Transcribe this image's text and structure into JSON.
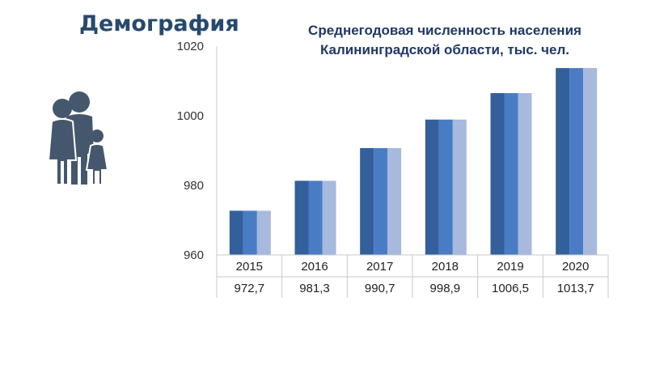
{
  "slide": {
    "title": "Демография",
    "icon": "family-icon"
  },
  "chart_data": {
    "type": "bar",
    "title": "Среднегодовая численность населения Калининградской области, тыс. чел.",
    "title_lines": [
      "Среднегодовая численность населения",
      "Калининградской области, тыс. чел."
    ],
    "categories": [
      "2015",
      "2016",
      "2017",
      "2018",
      "2019",
      "2020"
    ],
    "values": [
      972.7,
      981.3,
      990.7,
      998.9,
      1006.5,
      1013.7
    ],
    "value_labels": [
      "972,7",
      "981,3",
      "990,7",
      "998,9",
      "1006,5",
      "1013,7"
    ],
    "ylim": [
      960,
      1020
    ],
    "yticks": [
      960,
      980,
      1000,
      1020
    ],
    "grid": false,
    "colors": {
      "bar_dark": "#335f9a",
      "bar_mid": "#4a7cc4",
      "bar_light": "#a7b9dc",
      "title": "#1f3864",
      "icon": "#44576d"
    }
  }
}
